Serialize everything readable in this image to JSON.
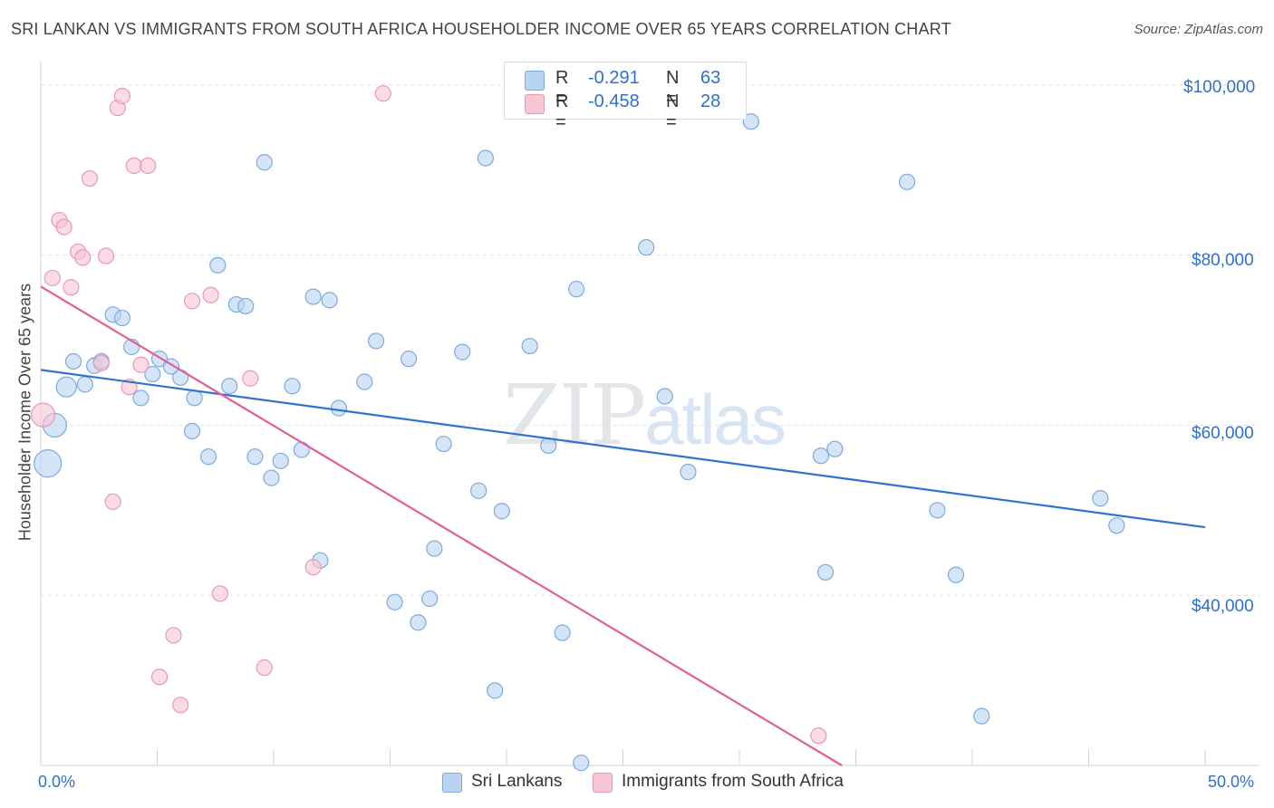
{
  "header": {
    "title": "SRI LANKAN VS IMMIGRANTS FROM SOUTH AFRICA HOUSEHOLDER INCOME OVER 65 YEARS CORRELATION CHART",
    "source": "Source: ZipAtlas.com"
  },
  "watermark": {
    "zip": "ZIP",
    "atlas": "atlas"
  },
  "legend_top": {
    "rows": [
      {
        "r_label": "R =",
        "r_value": "-0.291",
        "n_label": "N =",
        "n_value": "63"
      },
      {
        "r_label": "R =",
        "r_value": "-0.458",
        "n_label": "N =",
        "n_value": "28"
      }
    ]
  },
  "legend_bottom": {
    "items": [
      "Sri Lankans",
      "Immigrants from South Africa"
    ]
  },
  "colors": {
    "blue_fill": "#b9d3f3",
    "blue_stroke": "#7fa9dd",
    "blue_line": "#2f72d0",
    "pink_fill": "#f8c5d4",
    "pink_stroke": "#e899b2",
    "pink_line": "#e0628c",
    "grid": "#dde1e6",
    "axis_text": "#2f6fcf"
  },
  "axes": {
    "y_title": "Householder Income Over 65 years",
    "y_ticks": [
      "$100,000",
      "$80,000",
      "$60,000",
      "$40,000"
    ],
    "x_min_label": "0.0%",
    "x_max_label": "50.0%"
  },
  "chart_data": {
    "type": "scatter",
    "title": "SRI LANKAN VS IMMIGRANTS FROM SOUTH AFRICA HOUSEHOLDER INCOME OVER 65 YEARS CORRELATION CHART",
    "xlabel": "",
    "ylabel": "Householder Income Over 65 years",
    "xlim": [
      0,
      50
    ],
    "ylim": [
      20000,
      102000
    ],
    "y_tick_values": [
      100000,
      80000,
      60000,
      40000
    ],
    "series": [
      {
        "name": "Sri Lankans",
        "color": "blue",
        "R": -0.291,
        "N": 63,
        "trend": {
          "x": [
            0,
            50
          ],
          "y": [
            66500,
            48000
          ]
        },
        "points": [
          {
            "x": 0.3,
            "y": 55500,
            "size": "xl"
          },
          {
            "x": 0.6,
            "y": 60000,
            "size": "lg"
          },
          {
            "x": 1.1,
            "y": 64500,
            "size": "md"
          },
          {
            "x": 1.4,
            "y": 67500
          },
          {
            "x": 1.9,
            "y": 64800
          },
          {
            "x": 2.3,
            "y": 67000
          },
          {
            "x": 2.6,
            "y": 67500
          },
          {
            "x": 3.1,
            "y": 73000
          },
          {
            "x": 3.5,
            "y": 72600
          },
          {
            "x": 3.9,
            "y": 69200
          },
          {
            "x": 4.3,
            "y": 63200
          },
          {
            "x": 4.8,
            "y": 66000
          },
          {
            "x": 5.1,
            "y": 67800
          },
          {
            "x": 5.6,
            "y": 66900
          },
          {
            "x": 6.0,
            "y": 65600
          },
          {
            "x": 6.5,
            "y": 59300
          },
          {
            "x": 6.6,
            "y": 63200
          },
          {
            "x": 7.2,
            "y": 56300
          },
          {
            "x": 7.6,
            "y": 78800
          },
          {
            "x": 8.1,
            "y": 64600
          },
          {
            "x": 8.4,
            "y": 74200
          },
          {
            "x": 8.8,
            "y": 74000
          },
          {
            "x": 9.2,
            "y": 56300
          },
          {
            "x": 9.6,
            "y": 90900
          },
          {
            "x": 9.9,
            "y": 53800
          },
          {
            "x": 10.3,
            "y": 55800
          },
          {
            "x": 10.8,
            "y": 64600
          },
          {
            "x": 11.2,
            "y": 57100
          },
          {
            "x": 11.7,
            "y": 75100
          },
          {
            "x": 12.0,
            "y": 44100
          },
          {
            "x": 12.4,
            "y": 74700
          },
          {
            "x": 12.8,
            "y": 62000
          },
          {
            "x": 13.9,
            "y": 65100
          },
          {
            "x": 14.4,
            "y": 69900
          },
          {
            "x": 15.2,
            "y": 39200
          },
          {
            "x": 15.8,
            "y": 67800
          },
          {
            "x": 16.2,
            "y": 36800
          },
          {
            "x": 16.7,
            "y": 39600
          },
          {
            "x": 16.9,
            "y": 45500
          },
          {
            "x": 17.3,
            "y": 57800
          },
          {
            "x": 18.1,
            "y": 68600
          },
          {
            "x": 18.8,
            "y": 52300
          },
          {
            "x": 19.1,
            "y": 91400
          },
          {
            "x": 19.5,
            "y": 28800
          },
          {
            "x": 19.8,
            "y": 49900
          },
          {
            "x": 21.0,
            "y": 69300
          },
          {
            "x": 21.8,
            "y": 57600
          },
          {
            "x": 22.4,
            "y": 35600
          },
          {
            "x": 23.0,
            "y": 76000
          },
          {
            "x": 23.2,
            "y": 20300
          },
          {
            "x": 26.0,
            "y": 80900
          },
          {
            "x": 26.8,
            "y": 63400
          },
          {
            "x": 27.8,
            "y": 54500
          },
          {
            "x": 30.5,
            "y": 95700
          },
          {
            "x": 33.5,
            "y": 56400
          },
          {
            "x": 33.7,
            "y": 42700
          },
          {
            "x": 34.1,
            "y": 57200
          },
          {
            "x": 37.2,
            "y": 88600
          },
          {
            "x": 38.5,
            "y": 50000
          },
          {
            "x": 39.3,
            "y": 42400
          },
          {
            "x": 40.4,
            "y": 25800
          },
          {
            "x": 45.5,
            "y": 51400
          },
          {
            "x": 46.2,
            "y": 48200
          }
        ]
      },
      {
        "name": "Immigrants from South Africa",
        "color": "pink",
        "R": -0.458,
        "N": 28,
        "trend": {
          "x": [
            0,
            34.4
          ],
          "y": [
            76300,
            20000
          ]
        },
        "points": [
          {
            "x": 0.1,
            "y": 61200,
            "size": "lg"
          },
          {
            "x": 0.5,
            "y": 77300
          },
          {
            "x": 0.8,
            "y": 84100
          },
          {
            "x": 1.0,
            "y": 83300
          },
          {
            "x": 1.3,
            "y": 76200
          },
          {
            "x": 1.6,
            "y": 80400
          },
          {
            "x": 1.8,
            "y": 79700
          },
          {
            "x": 2.1,
            "y": 89000
          },
          {
            "x": 2.6,
            "y": 67300
          },
          {
            "x": 2.8,
            "y": 79900
          },
          {
            "x": 3.1,
            "y": 51000
          },
          {
            "x": 3.3,
            "y": 97300
          },
          {
            "x": 3.5,
            "y": 98700
          },
          {
            "x": 3.8,
            "y": 64500
          },
          {
            "x": 4.0,
            "y": 90500
          },
          {
            "x": 4.3,
            "y": 67100
          },
          {
            "x": 4.6,
            "y": 90500
          },
          {
            "x": 5.1,
            "y": 30400
          },
          {
            "x": 5.7,
            "y": 35300
          },
          {
            "x": 6.0,
            "y": 27100
          },
          {
            "x": 6.5,
            "y": 74600
          },
          {
            "x": 7.3,
            "y": 75300
          },
          {
            "x": 7.7,
            "y": 40200
          },
          {
            "x": 9.0,
            "y": 65500
          },
          {
            "x": 9.6,
            "y": 31500
          },
          {
            "x": 11.7,
            "y": 43300
          },
          {
            "x": 14.7,
            "y": 99000
          },
          {
            "x": 33.4,
            "y": 23500
          }
        ]
      }
    ]
  }
}
